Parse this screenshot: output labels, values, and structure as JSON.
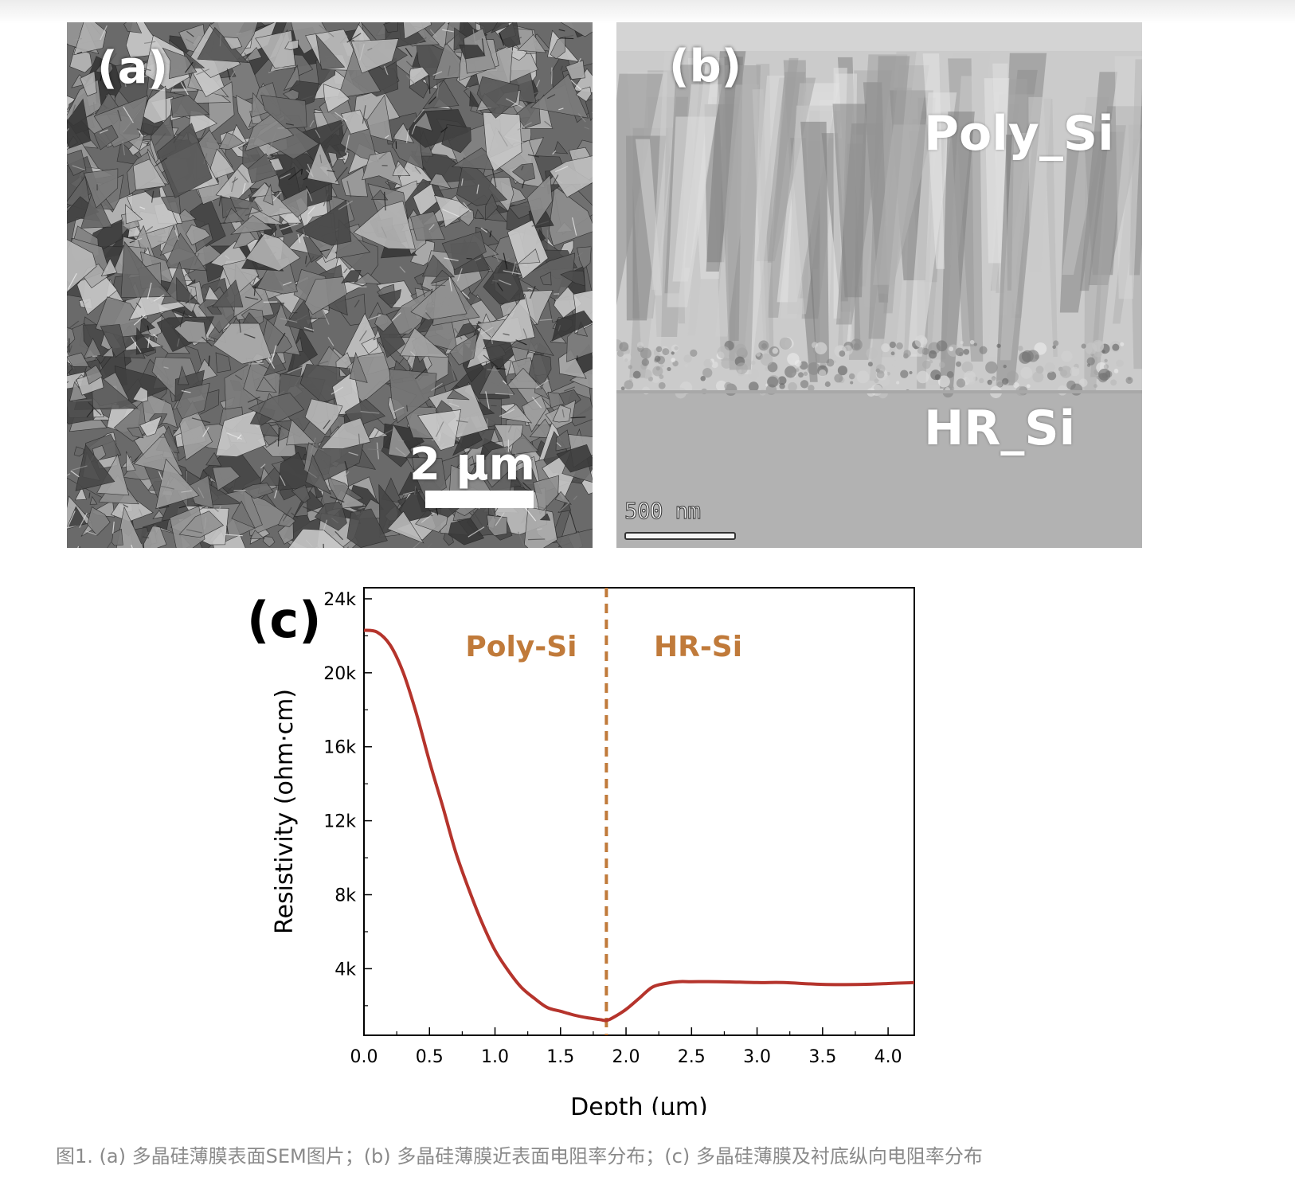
{
  "figure": {
    "panel_a": {
      "label": "(a)",
      "scalebar_text": "2 μm"
    },
    "panel_b": {
      "label": "(b)",
      "top_region": "Poly_Si",
      "bottom_region": "HR_Si",
      "scalebar_text": "500 nm"
    },
    "panel_c": {
      "label": "(c)"
    },
    "caption": "图1. (a) 多晶硅薄膜表面SEM图片；(b) 多晶硅薄膜近表面电阻率分布；(c) 多晶硅薄膜及衬底纵向电阻率分布"
  },
  "chart_data": {
    "type": "line",
    "xlabel": "Depth (μm)",
    "ylabel": "Resistivity (ohm·cm)",
    "xlim": [
      0.0,
      4.2
    ],
    "ylim": [
      400,
      24600
    ],
    "x_ticks": [
      "0.0",
      "0.5",
      "1.0",
      "1.5",
      "2.0",
      "2.5",
      "3.0",
      "3.5",
      "4.0"
    ],
    "x_tick_values": [
      0.0,
      0.5,
      1.0,
      1.5,
      2.0,
      2.5,
      3.0,
      3.5,
      4.0
    ],
    "y_ticks": [
      "4k",
      "8k",
      "12k",
      "16k",
      "20k",
      "24k"
    ],
    "y_tick_values": [
      4000,
      8000,
      12000,
      16000,
      20000,
      24000
    ],
    "grid": false,
    "series": [
      {
        "color": "#b5342c",
        "x": [
          0.0,
          0.1,
          0.2,
          0.3,
          0.4,
          0.5,
          0.6,
          0.7,
          0.8,
          0.9,
          1.0,
          1.1,
          1.2,
          1.3,
          1.4,
          1.5,
          1.6,
          1.7,
          1.8,
          1.85,
          1.9,
          2.0,
          2.1,
          2.2,
          2.3,
          2.4,
          2.5,
          2.7,
          3.0,
          3.2,
          3.5,
          3.8,
          4.0,
          4.2
        ],
        "y": [
          22300,
          22200,
          21500,
          20000,
          17800,
          15200,
          12800,
          10300,
          8300,
          6500,
          5000,
          3900,
          3000,
          2400,
          1900,
          1700,
          1500,
          1350,
          1250,
          1200,
          1350,
          1800,
          2400,
          3000,
          3200,
          3300,
          3300,
          3300,
          3250,
          3250,
          3150,
          3150,
          3200,
          3250
        ]
      }
    ],
    "vline": {
      "x": 1.85,
      "color": "#c07a3a",
      "style": "dashed"
    },
    "annotations": [
      {
        "text": "Poly-Si",
        "x": 1.2,
        "y": 20900,
        "color": "#c07a3a"
      },
      {
        "text": "HR-Si",
        "x": 2.55,
        "y": 20900,
        "color": "#c07a3a"
      }
    ]
  }
}
